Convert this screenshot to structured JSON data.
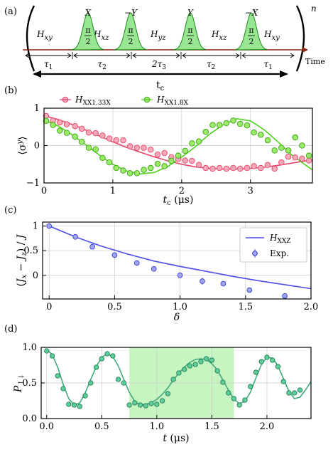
{
  "colors": {
    "red": "#e8466b",
    "green": "#52d11e",
    "blue": "#4c4de8",
    "teal": "#3fa97a",
    "tealpt": "#2ea37a",
    "shade": "#c6f5c2",
    "pulse": "#98e592"
  },
  "panels": [
    {
      "label": "(a)"
    },
    {
      "label": "(b)"
    },
    {
      "label": "(c)"
    },
    {
      "label": "(d)"
    }
  ],
  "sequence": {
    "segments": [
      "H_xy",
      "H_xz",
      "H_yz",
      "H_xz",
      "H_xy"
    ],
    "pulses": [
      {
        "label": "X",
        "angle": "π/2"
      },
      {
        "label": "−Y",
        "angle": "π/2"
      },
      {
        "label": "Y",
        "angle": "π/2"
      },
      {
        "label": "−X",
        "angle": "π/2"
      }
    ],
    "durations": [
      "τ1",
      "τ2",
      "2τ3",
      "τ2",
      "τ1"
    ],
    "total": "tc",
    "time_label": "Time",
    "repeat": "n"
  },
  "chart_data": [
    {
      "type": "scatter",
      "ylabel": "⟨σʸ⟩",
      "xlabel": "tc (μs)",
      "xlim": [
        0,
        3.9
      ],
      "ylim": [
        -1,
        1
      ],
      "xticks": [
        0,
        1,
        2,
        3
      ],
      "yticks": [
        -1,
        0,
        1
      ],
      "grid": true,
      "legend": "top",
      "series": [
        {
          "name": "HXX1.33X",
          "color": "#e8466b",
          "x": [
            0.03,
            0.13,
            0.23,
            0.33,
            0.45,
            0.55,
            0.65,
            0.75,
            0.85,
            0.95,
            1.05,
            1.15,
            1.25,
            1.35,
            1.45,
            1.55,
            1.65,
            1.75,
            1.85,
            1.95,
            2.05,
            2.15,
            2.25,
            2.35,
            2.45,
            2.55,
            2.65,
            2.75,
            2.85,
            2.95,
            3.05,
            3.15,
            3.25,
            3.35,
            3.45,
            3.55,
            3.65,
            3.75,
            3.85
          ],
          "y": [
            0.79,
            0.67,
            0.62,
            0.57,
            0.52,
            0.45,
            0.35,
            0.33,
            0.27,
            0.19,
            0.14,
            0.14,
            -0.02,
            -0.06,
            -0.06,
            -0.11,
            -0.24,
            -0.2,
            -0.31,
            -0.36,
            -0.4,
            -0.41,
            -0.52,
            -0.6,
            -0.62,
            -0.6,
            -0.62,
            -0.6,
            -0.62,
            -0.6,
            -0.55,
            -0.6,
            -0.52,
            -0.62,
            -0.45,
            -0.3,
            -0.32,
            -0.35,
            -0.4
          ],
          "fit": [
            [
              0,
              0.8
            ],
            [
              0.2,
              0.7
            ],
            [
              0.4,
              0.57
            ],
            [
              0.6,
              0.42
            ],
            [
              0.8,
              0.26
            ],
            [
              1.0,
              0.1
            ],
            [
              1.2,
              -0.05
            ],
            [
              1.4,
              -0.18
            ],
            [
              1.6,
              -0.3
            ],
            [
              1.8,
              -0.41
            ],
            [
              2.0,
              -0.5
            ],
            [
              2.2,
              -0.57
            ],
            [
              2.4,
              -0.61
            ],
            [
              2.6,
              -0.63
            ],
            [
              2.8,
              -0.63
            ],
            [
              3.0,
              -0.61
            ],
            [
              3.2,
              -0.58
            ],
            [
              3.4,
              -0.53
            ],
            [
              3.6,
              -0.47
            ],
            [
              3.8,
              -0.41
            ],
            [
              3.9,
              -0.38
            ]
          ]
        },
        {
          "name": "HXX1.8X",
          "color": "#52d11e",
          "x": [
            0.03,
            0.13,
            0.23,
            0.33,
            0.45,
            0.55,
            0.65,
            0.75,
            0.85,
            0.95,
            1.05,
            1.15,
            1.25,
            1.35,
            1.45,
            1.55,
            1.65,
            1.75,
            1.85,
            1.95,
            2.05,
            2.15,
            2.25,
            2.35,
            2.45,
            2.55,
            2.65,
            2.75,
            2.85,
            2.95,
            3.05,
            3.15,
            3.25,
            3.35,
            3.45,
            3.55,
            3.65,
            3.75,
            3.85
          ],
          "y": [
            0.66,
            0.55,
            0.4,
            0.34,
            0.24,
            0.1,
            -0.06,
            -0.1,
            -0.33,
            -0.45,
            -0.6,
            -0.67,
            -0.74,
            -0.74,
            -0.65,
            -0.6,
            -0.49,
            -0.55,
            -0.41,
            -0.27,
            -0.14,
            0.06,
            0.11,
            0.37,
            0.55,
            0.55,
            0.6,
            0.67,
            0.58,
            0.54,
            0.35,
            0.29,
            0.14,
            -0.13,
            -0.06,
            -0.13,
            0.22,
            0.0,
            -0.27
          ],
          "fit": [
            [
              0,
              0.68
            ],
            [
              0.2,
              0.53
            ],
            [
              0.4,
              0.3
            ],
            [
              0.6,
              0.03
            ],
            [
              0.8,
              -0.25
            ],
            [
              1.0,
              -0.5
            ],
            [
              1.2,
              -0.68
            ],
            [
              1.4,
              -0.76
            ],
            [
              1.6,
              -0.72
            ],
            [
              1.8,
              -0.56
            ],
            [
              2.0,
              -0.31
            ],
            [
              2.2,
              -0.03
            ],
            [
              2.4,
              0.3
            ],
            [
              2.6,
              0.55
            ],
            [
              2.8,
              0.72
            ],
            [
              3.0,
              0.66
            ],
            [
              3.2,
              0.42
            ],
            [
              3.4,
              0.1
            ],
            [
              3.6,
              -0.25
            ],
            [
              3.8,
              -0.52
            ],
            [
              3.9,
              -0.65
            ]
          ]
        }
      ]
    },
    {
      "type": "scatter",
      "ylabel": "(Jx − Jz) / J",
      "xlabel": "δ",
      "xlim": [
        -0.05,
        2.0
      ],
      "ylim": [
        -0.48,
        1.08
      ],
      "xticks": [
        0,
        0.5,
        1.0,
        1.5,
        2.0
      ],
      "yticks": [
        0,
        0.5,
        1
      ],
      "grid": true,
      "legend": "top-right",
      "series": [
        {
          "name": "HXXZ",
          "color": "#4c4de8",
          "fit": [
            [
              0,
              1.0
            ],
            [
              0.2,
              0.78
            ],
            [
              0.4,
              0.59
            ],
            [
              0.6,
              0.43
            ],
            [
              0.8,
              0.29
            ],
            [
              1.0,
              0.18
            ],
            [
              1.2,
              0.08
            ],
            [
              1.4,
              -0.02
            ],
            [
              1.6,
              -0.11
            ],
            [
              1.8,
              -0.19
            ],
            [
              2.0,
              -0.27
            ]
          ]
        },
        {
          "name": "Exp.",
          "color": "#4c4de8",
          "x": [
            0.0,
            0.2,
            0.33,
            0.5,
            0.67,
            0.8,
            1.0,
            1.17,
            1.33,
            1.53,
            1.8
          ],
          "y": [
            1.0,
            0.78,
            0.58,
            0.41,
            0.25,
            0.13,
            0.0,
            -0.12,
            -0.17,
            -0.3,
            -0.42
          ],
          "err": [
            0.02,
            0.02,
            0.02,
            0.02,
            0.02,
            0.02,
            0.03,
            0.07,
            0.04,
            0.02,
            0.02
          ]
        }
      ]
    },
    {
      "type": "scatter",
      "ylabel": "P↑↓",
      "xlabel": "t (μs)",
      "xlim": [
        -0.05,
        2.4
      ],
      "ylim": [
        0,
        1.0
      ],
      "xticks": [
        0.0,
        0.5,
        1.0,
        1.5,
        2.0
      ],
      "yticks": [
        0.0,
        0.5,
        1.0
      ],
      "grid": true,
      "shaded_x": [
        0.75,
        1.7
      ],
      "series": [
        {
          "name": "",
          "color": "#2ea37a",
          "x": [
            0.0,
            0.05,
            0.1,
            0.15,
            0.2,
            0.25,
            0.3,
            0.35,
            0.4,
            0.45,
            0.5,
            0.55,
            0.6,
            0.65,
            0.7,
            0.75,
            0.8,
            0.85,
            0.9,
            0.95,
            1.0,
            1.05,
            1.1,
            1.15,
            1.2,
            1.25,
            1.3,
            1.35,
            1.4,
            1.45,
            1.5,
            1.55,
            1.6,
            1.65,
            1.7,
            1.75,
            1.8,
            1.85,
            1.9,
            1.95,
            2.0,
            2.05,
            2.1,
            2.15,
            2.2,
            2.25,
            2.3
          ],
          "y": [
            0.95,
            0.88,
            0.6,
            0.42,
            0.2,
            0.19,
            0.17,
            0.32,
            0.5,
            0.72,
            0.84,
            0.91,
            0.88,
            0.55,
            0.5,
            0.19,
            0.22,
            0.19,
            0.18,
            0.21,
            0.2,
            0.25,
            0.35,
            0.55,
            0.64,
            0.69,
            0.74,
            0.76,
            0.8,
            0.84,
            0.82,
            0.67,
            0.51,
            0.36,
            0.28,
            0.19,
            0.26,
            0.45,
            0.65,
            0.8,
            0.86,
            0.82,
            0.73,
            0.52,
            0.36,
            0.36,
            0.4
          ],
          "fit": [
            [
              0,
              0.97
            ],
            [
              0.05,
              0.9
            ],
            [
              0.1,
              0.72
            ],
            [
              0.15,
              0.48
            ],
            [
              0.2,
              0.28
            ],
            [
              0.25,
              0.19
            ],
            [
              0.3,
              0.22
            ],
            [
              0.35,
              0.36
            ],
            [
              0.4,
              0.55
            ],
            [
              0.45,
              0.73
            ],
            [
              0.5,
              0.86
            ],
            [
              0.55,
              0.91
            ],
            [
              0.6,
              0.87
            ],
            [
              0.65,
              0.74
            ],
            [
              0.7,
              0.55
            ],
            [
              0.75,
              0.37
            ],
            [
              0.8,
              0.24
            ],
            [
              0.85,
              0.19
            ],
            [
              0.9,
              0.2
            ],
            [
              0.95,
              0.22
            ],
            [
              1.0,
              0.27
            ],
            [
              1.05,
              0.34
            ],
            [
              1.1,
              0.43
            ],
            [
              1.15,
              0.54
            ],
            [
              1.2,
              0.64
            ],
            [
              1.25,
              0.72
            ],
            [
              1.3,
              0.79
            ],
            [
              1.35,
              0.83
            ],
            [
              1.4,
              0.84
            ],
            [
              1.45,
              0.83
            ],
            [
              1.5,
              0.77
            ],
            [
              1.55,
              0.68
            ],
            [
              1.6,
              0.54
            ],
            [
              1.65,
              0.4
            ],
            [
              1.7,
              0.27
            ],
            [
              1.75,
              0.21
            ],
            [
              1.8,
              0.24
            ],
            [
              1.85,
              0.37
            ],
            [
              1.9,
              0.57
            ],
            [
              1.95,
              0.76
            ],
            [
              2.0,
              0.86
            ],
            [
              2.05,
              0.85
            ],
            [
              2.1,
              0.74
            ],
            [
              2.15,
              0.56
            ],
            [
              2.2,
              0.38
            ],
            [
              2.25,
              0.28
            ],
            [
              2.3,
              0.3
            ],
            [
              2.35,
              0.4
            ],
            [
              2.4,
              0.52
            ]
          ]
        }
      ]
    }
  ]
}
